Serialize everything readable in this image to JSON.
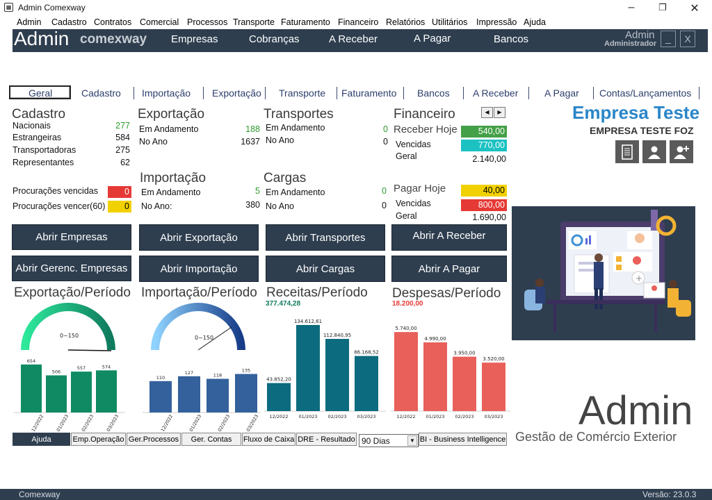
{
  "window": {
    "title": "Admin Comexway"
  },
  "menu": [
    "Admin",
    "Cadastro",
    "Contratos",
    "Comercial",
    "Processos",
    "Transporte",
    "Faturamento",
    "Financeiro",
    "Relatórios",
    "Utilitários",
    "Impressão",
    "Ajuda"
  ],
  "topbar": {
    "brand_main": "Admin",
    "brand_sub": "comexway",
    "nav": [
      "Empresas",
      "Cobranças",
      "A Receber",
      "A Pagar",
      "Bancos"
    ],
    "user_name": "Admin",
    "user_role": "Administrador",
    "minimize": "_",
    "close": "X"
  },
  "tabs": [
    "Geral",
    "Cadastro",
    "Importação",
    "Exportação",
    "Transporte",
    "Faturamento",
    "Bancos",
    "A Receber",
    "A Pagar",
    "Contas/Lançamentos"
  ],
  "cadastro": {
    "title": "Cadastro",
    "rows": [
      {
        "label": "Nacionais",
        "value": "277"
      },
      {
        "label": "Estrangeiras",
        "value": "584"
      },
      {
        "label": "Transportadoras",
        "value": "275"
      },
      {
        "label": "Representantes",
        "value": "62"
      }
    ],
    "proc_vencidas_label": "Procurações vencidas",
    "proc_vencidas_value": "0",
    "proc_vencer_label": "Procurações vencer(60)",
    "proc_vencer_value": "0"
  },
  "exportacao": {
    "title": "Exportação",
    "andamento_label": "Em Andamento",
    "andamento": "188",
    "ano_label": "No Ano",
    "ano": "1637"
  },
  "importacao": {
    "title": "Importação",
    "andamento_label": "Em Andamento",
    "andamento": "5",
    "ano_label": "No Ano:",
    "ano": "380"
  },
  "transportes": {
    "title": "Transportes",
    "andamento_label": "Em Andamento",
    "andamento": "0",
    "ano_label": "No Ano",
    "ano": "0"
  },
  "cargas": {
    "title": "Cargas",
    "andamento_label": "Em Andamento",
    "andamento": "0",
    "ano_label": "No Ano",
    "ano": "0"
  },
  "financeiro": {
    "title": "Financeiro",
    "receber_hoje_label": "Receber Hoje",
    "receber_hoje": "540,00",
    "receber_vencidas_label": "Vencidas",
    "receber_vencidas": "770,00",
    "receber_geral_label": "Geral",
    "receber_geral": "2.140,00",
    "pagar_hoje_label": "Pagar Hoje",
    "pagar_hoje": "40,00",
    "pagar_vencidas_label": "Vencidas",
    "pagar_vencidas": "800,00",
    "pagar_geral_label": "Geral",
    "pagar_geral": "1.690,00",
    "prev": "◀",
    "next": "▶"
  },
  "empresa": {
    "title": "Empresa Teste",
    "subtitle": "EMPRESA TESTE FOZ"
  },
  "buttons": {
    "abrir_empresas": "Abrir Empresas",
    "abrir_gerenc": "Abrir Gerenc. Empresas",
    "abrir_exportacao": "Abrir Exportação",
    "abrir_importacao": "Abrir Importação",
    "abrir_transportes": "Abrir Transportes",
    "abrir_cargas": "Abrir Cargas",
    "abrir_receber": "Abrir A Receber",
    "abrir_pagar": "Abrir A Pagar"
  },
  "charts_titles": {
    "exportacao": "Exportação/Período",
    "importacao": "Importação/Período",
    "receitas": "Receitas/Período",
    "despesas": "Despesas/Período",
    "receitas_total": "377.474,28",
    "despesas_total": "18.200,00",
    "gauge_label": "0~150"
  },
  "chart_data": [
    {
      "type": "bar",
      "title": "Exportação/Período",
      "categories": [
        "12/2022",
        "01/2023",
        "02/2023",
        "03/2023"
      ],
      "values": [
        654,
        506,
        557,
        574
      ],
      "labels": [
        "654",
        "506",
        "557",
        "574"
      ],
      "ylim": [
        0,
        700
      ],
      "color": "#0f8a63"
    },
    {
      "type": "bar",
      "title": "Importação/Período",
      "categories": [
        "12/2022",
        "01/2023",
        "02/2023",
        "03/2023"
      ],
      "values": [
        110,
        127,
        118,
        135
      ],
      "labels": [
        "110",
        "127",
        "118",
        "135"
      ],
      "ylim": [
        0,
        180
      ],
      "color": "#34619c"
    },
    {
      "type": "bar",
      "title": "Receitas/Período",
      "categories": [
        "12/2022",
        "01/2023",
        "02/2023",
        "03/2023"
      ],
      "values": [
        43852.2,
        134612.61,
        112840.95,
        86168.52
      ],
      "labels": [
        "43.852,20",
        "134.612,61",
        "112.840,95",
        "86.168,52"
      ],
      "ylim": [
        0,
        140000
      ],
      "color": "#0c6b7e"
    },
    {
      "type": "bar",
      "title": "Despesas/Período",
      "categories": [
        "12/2022",
        "01/2023",
        "02/2023",
        "03/2023"
      ],
      "values": [
        5740,
        4990,
        3950,
        3520
      ],
      "labels": [
        "5.740,00",
        "4.990,00",
        "3.950,00",
        "3.520,00"
      ],
      "ylim": [
        0,
        6200
      ],
      "color": "#e9605a"
    }
  ],
  "bottom": {
    "ajuda": "Ajuda",
    "emp_operacao": "Emp.Operação",
    "ger_processos": "Ger.Processos",
    "ger_contas": "Ger. Contas",
    "fluxo": "Fluxo de Caixa",
    "dre": "DRE - Resultado",
    "periodo": "90 Dias",
    "bi": "BI - Business Intelligence"
  },
  "brand_footer": {
    "title": "Admin",
    "subtitle": "Gestão de Comércio Exterior"
  },
  "status": {
    "left": "Comexway",
    "right": "Versão: 23.0.3"
  },
  "colors": {
    "green": "#43a047",
    "teal": "#1cc2c2",
    "yellow": "#f2d100",
    "red": "#e53935",
    "dark": "#2e3e4f"
  }
}
